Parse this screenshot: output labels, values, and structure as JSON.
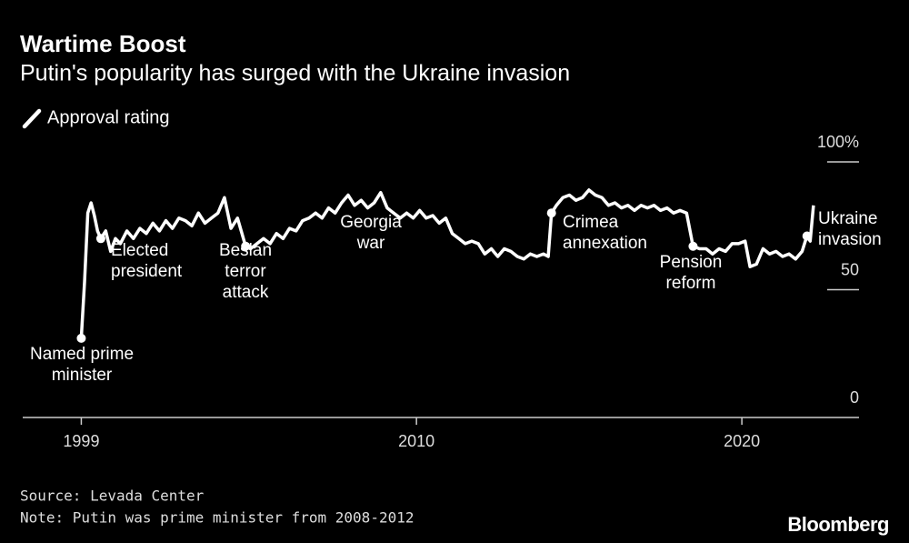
{
  "chart_data": {
    "type": "line",
    "title": "Wartime Boost",
    "subtitle": "Putin's popularity has surged with the Ukraine invasion",
    "source": "Source: Levada Center",
    "note": "Note: Putin was prime minister from 2008-2012",
    "brand": "Bloomberg",
    "legend": "top-left",
    "xlim": [
      1997.9,
      2023.6
    ],
    "xticks": [
      {
        "value": 1999.7,
        "label": "1999"
      },
      2010,
      2020
    ],
    "ylim": [
      0,
      100
    ],
    "yticks": [
      0,
      50,
      {
        "value": 100,
        "label": "100%"
      }
    ],
    "series": [
      {
        "name": "Approval rating",
        "color": "#ffffff",
        "x": [
          1999.7,
          1999.8,
          1999.9,
          2000.0,
          2000.1,
          2000.2,
          2000.3,
          2000.45,
          2000.6,
          2000.75,
          2000.9,
          2001.1,
          2001.3,
          2001.5,
          2001.7,
          2001.9,
          2002.1,
          2002.3,
          2002.5,
          2002.7,
          2002.9,
          2003.1,
          2003.3,
          2003.5,
          2003.7,
          2003.9,
          2004.1,
          2004.3,
          2004.5,
          2004.75,
          2004.9,
          2005.1,
          2005.3,
          2005.5,
          2005.7,
          2005.9,
          2006.1,
          2006.3,
          2006.5,
          2006.7,
          2006.9,
          2007.1,
          2007.3,
          2007.5,
          2007.7,
          2007.9,
          2008.1,
          2008.3,
          2008.5,
          2008.7,
          2008.9,
          2009.1,
          2009.3,
          2009.5,
          2009.7,
          2009.9,
          2010.1,
          2010.3,
          2010.5,
          2010.7,
          2010.9,
          2011.1,
          2011.3,
          2011.5,
          2011.7,
          2011.9,
          2012.1,
          2012.3,
          2012.5,
          2012.7,
          2012.9,
          2013.1,
          2013.3,
          2013.5,
          2013.7,
          2013.9,
          2014.05,
          2014.15,
          2014.3,
          2014.5,
          2014.7,
          2014.9,
          2015.1,
          2015.3,
          2015.5,
          2015.7,
          2015.9,
          2016.1,
          2016.3,
          2016.5,
          2016.7,
          2016.9,
          2017.1,
          2017.3,
          2017.5,
          2017.7,
          2017.9,
          2018.1,
          2018.3,
          2018.5,
          2018.7,
          2018.9,
          2019.1,
          2019.3,
          2019.5,
          2019.7,
          2019.9,
          2020.1,
          2020.25,
          2020.45,
          2020.65,
          2020.85,
          2021.05,
          2021.25,
          2021.45,
          2021.65,
          2021.85,
          2022.0,
          2022.1,
          2022.2
        ],
        "values": [
          31,
          53,
          80,
          84,
          79,
          73,
          70,
          73,
          65,
          70,
          68,
          73,
          70,
          74,
          72,
          76,
          73,
          77,
          74,
          78,
          77,
          75,
          80,
          76,
          78,
          80,
          86,
          74,
          78,
          67,
          66,
          68,
          70,
          68,
          72,
          70,
          74,
          73,
          77,
          78,
          80,
          78,
          82,
          80,
          84,
          87,
          83,
          85,
          82,
          84,
          88,
          82,
          80,
          78,
          80,
          78,
          81,
          78,
          79,
          76,
          78,
          72,
          70,
          68,
          69,
          68,
          64,
          66,
          63,
          66,
          65,
          63,
          62,
          64,
          63,
          64,
          63,
          80,
          83,
          86,
          87,
          85,
          86,
          89,
          87,
          86,
          83,
          84,
          82,
          83,
          81,
          83,
          82,
          83,
          81,
          82,
          80,
          81,
          80,
          67,
          66,
          66,
          64,
          66,
          65,
          68,
          68,
          69,
          59,
          60,
          66,
          64,
          65,
          63,
          64,
          62,
          65,
          71,
          69,
          83
        ]
      }
    ],
    "annotations": [
      {
        "lines": [
          "Named prime",
          "minister"
        ],
        "x": 1999.7,
        "y": 31
      },
      {
        "lines": [
          "Elected",
          "president"
        ],
        "x": 2000.3,
        "y": 70
      },
      {
        "lines": [
          "Beslan",
          "terror",
          "attack"
        ],
        "x": 2004.75,
        "y": 67
      },
      {
        "lines": [
          "Georgia",
          "war"
        ]
      },
      {
        "lines": [
          "Crimea",
          "annexation"
        ],
        "x": 2014.15,
        "y": 80
      },
      {
        "lines": [
          "Pension",
          "reform"
        ],
        "x": 2018.5,
        "y": 67
      },
      {
        "lines": [
          "Ukraine",
          "invasion"
        ],
        "x": 2022.0,
        "y": 71
      }
    ]
  }
}
